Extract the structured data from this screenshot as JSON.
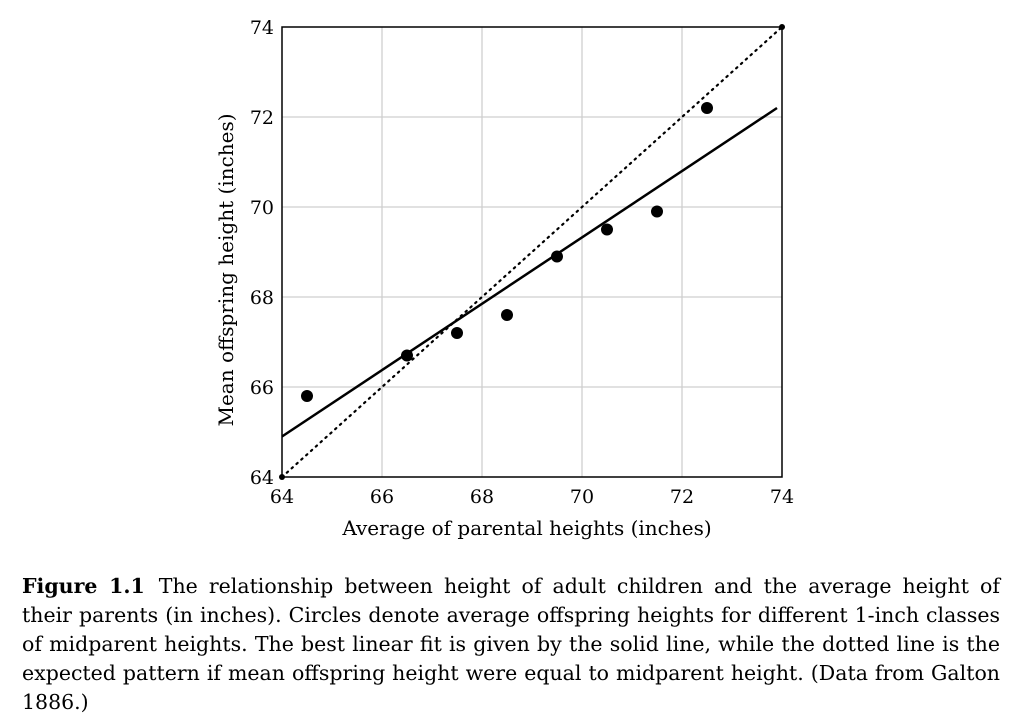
{
  "chart_data": {
    "type": "scatter",
    "xlabel": "Average of parental heights (inches)",
    "ylabel": "Mean offspring height (inches)",
    "xlim": [
      64,
      74
    ],
    "ylim": [
      64,
      74
    ],
    "xticks": [
      "64",
      "66",
      "68",
      "70",
      "72",
      "74"
    ],
    "yticks": [
      "64",
      "66",
      "68",
      "70",
      "72",
      "74"
    ],
    "grid": true,
    "points": [
      {
        "x": 64.5,
        "y": 65.8
      },
      {
        "x": 66.5,
        "y": 66.7
      },
      {
        "x": 67.5,
        "y": 67.2
      },
      {
        "x": 68.5,
        "y": 67.6
      },
      {
        "x": 69.5,
        "y": 68.9
      },
      {
        "x": 70.5,
        "y": 69.5
      },
      {
        "x": 71.5,
        "y": 69.9
      },
      {
        "x": 72.5,
        "y": 72.2
      }
    ],
    "fit_line": {
      "style": "solid",
      "x": [
        64,
        73.9
      ],
      "y": [
        64.9,
        72.2
      ]
    },
    "reference_line": {
      "style": "dotted",
      "x": [
        64,
        74
      ],
      "y": [
        64,
        74
      ]
    }
  },
  "caption": {
    "label": "Figure 1.1",
    "text": "The relationship between height of adult children and the average height of their parents (in inches). Circles denote average offspring heights for different 1-inch classes of midparent heights. The best linear fit is given by the solid line, while the dotted line is the expected pattern if mean offspring height were equal to midparent height. (Data from Galton 1886.)"
  }
}
